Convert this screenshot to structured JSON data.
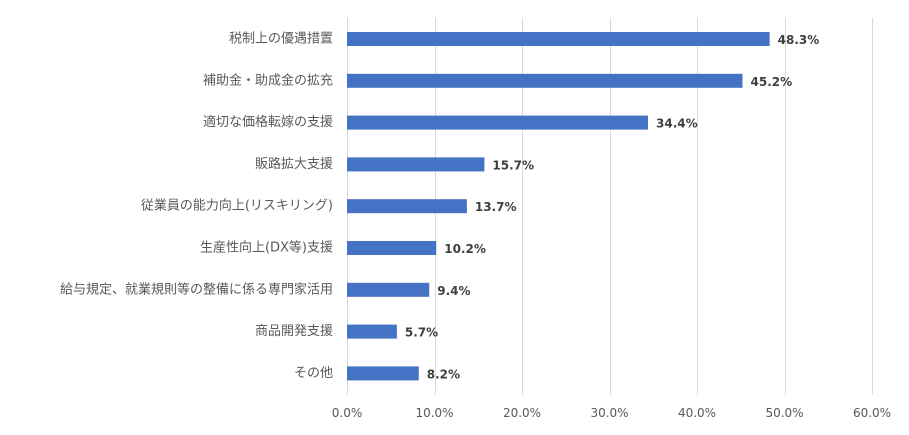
{
  "chart_data": {
    "type": "bar",
    "orientation": "horizontal",
    "categories": [
      "税制上の優遇措置",
      "補助金・助成金の拡充",
      "適切な価格転嫁の支援",
      "販路拡大支援",
      "従業員の能力向上(リスキリング)",
      "生産性向上(DX等)支援",
      "給与規定、就業規則等の整備に係る専門家活用",
      "商品開発支援",
      "その他"
    ],
    "values": [
      48.3,
      45.2,
      34.4,
      15.7,
      13.7,
      10.2,
      9.4,
      5.7,
      8.2
    ],
    "data_labels": [
      "48.3%",
      "45.2%",
      "34.4%",
      "15.7%",
      "13.7%",
      "10.2%",
      "9.4%",
      "5.7%",
      "8.2%"
    ],
    "xlim": [
      0,
      60
    ],
    "xticks": [
      0,
      10,
      20,
      30,
      40,
      50,
      60
    ],
    "xtick_labels": [
      "0.0%",
      "10.0%",
      "20.0%",
      "30.0%",
      "40.0%",
      "50.0%",
      "60.0%"
    ],
    "title": "",
    "xlabel": "",
    "ylabel": "",
    "grid": "vertical",
    "bar_color": "#4472c4",
    "gridline_color": "#d9d9d9"
  }
}
